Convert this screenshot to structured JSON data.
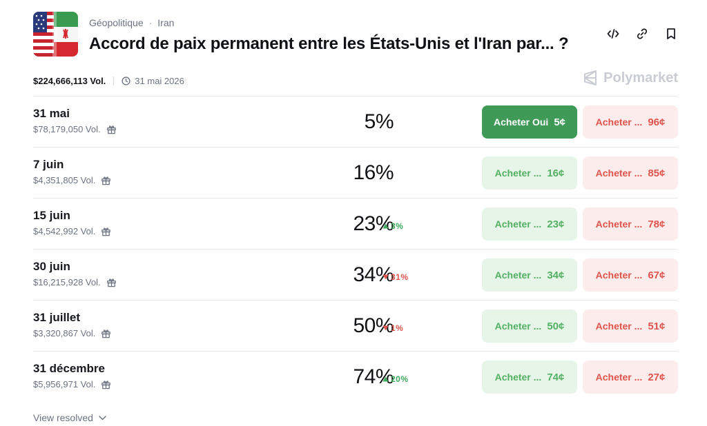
{
  "header": {
    "category": "Géopolitique",
    "separator": "·",
    "subcategory": "Iran",
    "title": "Accord de paix permanent entre les États-Unis et l'Iran par... ?"
  },
  "meta": {
    "volume": "$224,666,113 Vol.",
    "end_date": "31 mai 2026"
  },
  "brand": {
    "name": "Polymarket"
  },
  "rows": [
    {
      "label": "31 mai",
      "volume": "$78,179,050 Vol.",
      "percent": "5%",
      "change": "",
      "yes_label": "Acheter Oui",
      "yes_price": "5¢",
      "no_label": "Acheter ...",
      "no_price": "96¢"
    },
    {
      "label": "7 juin",
      "volume": "$4,351,805 Vol.",
      "percent": "16%",
      "change": "",
      "yes_label": "Acheter ...",
      "yes_price": "16¢",
      "no_label": "Acheter ...",
      "no_price": "85¢"
    },
    {
      "label": "15 juin",
      "volume": "$4,542,992 Vol.",
      "percent": "23%",
      "change": "3%",
      "yes_label": "Acheter ...",
      "yes_price": "23¢",
      "no_label": "Acheter ...",
      "no_price": "78¢"
    },
    {
      "label": "30 juin",
      "volume": "$16,215,928 Vol.",
      "percent": "34%",
      "change": "31%",
      "yes_label": "Acheter ...",
      "yes_price": "34¢",
      "no_label": "Acheter ...",
      "no_price": "67¢"
    },
    {
      "label": "31 juillet",
      "volume": "$3,320,867 Vol.",
      "percent": "50%",
      "change": "1%",
      "yes_label": "Acheter ...",
      "yes_price": "50¢",
      "no_label": "Acheter ...",
      "no_price": "51¢"
    },
    {
      "label": "31 décembre",
      "volume": "$5,956,971 Vol.",
      "percent": "74%",
      "change": "20%",
      "yes_label": "Acheter ...",
      "yes_price": "74¢",
      "no_label": "Acheter ...",
      "no_price": "27¢"
    }
  ],
  "footer": {
    "view_resolved": "View resolved"
  },
  "colors": {
    "yes_solid": "#3f9a57",
    "yes_light": "#e6f5e8",
    "no_light": "#fdecec",
    "up": "#3da95a",
    "down": "#e0534c"
  },
  "icons": [
    "embed-code-icon",
    "link-icon",
    "bookmark-icon",
    "clock-icon",
    "gift-icon",
    "polymarket-logo-icon",
    "chevron-down-icon"
  ]
}
